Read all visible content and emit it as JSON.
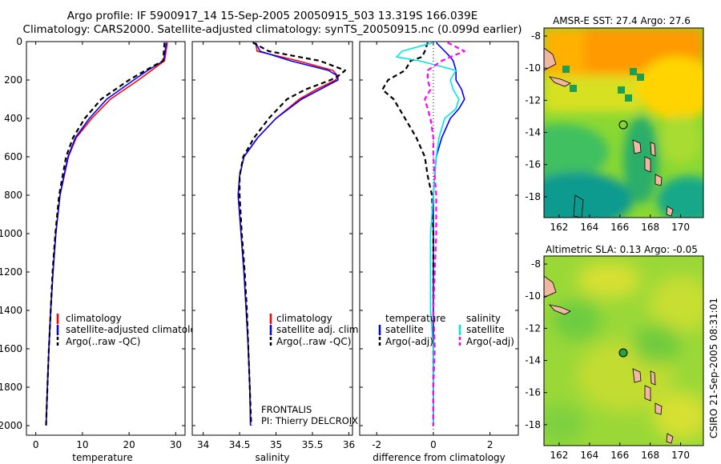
{
  "header": {
    "title_line1": "Argo profile: IF 5900917_14 15-Sep-2005 20050915_503 13.319S 166.039E",
    "title_line2": "Climatology: CARS2000. Satellite-adjusted climatology: synTS_20050915.nc (0.099d earlier)"
  },
  "credit": "CSIRO 21-Sep-2005 08:31:01",
  "pi_block": {
    "line1": "FRONTALIS",
    "line2": "PI: Thierry DELCROIX"
  },
  "colors": {
    "climatology": "#ff0000",
    "satellite": "#0000ff",
    "argo": "#000000",
    "sal_satellite": "#00e5e5",
    "sal_argo": "#ff00ff"
  },
  "chart_data": [
    {
      "id": "temperature",
      "type": "line",
      "xlabel": "temperature",
      "xticks": [
        0,
        10,
        20,
        30
      ],
      "xlim": [
        -2,
        32
      ],
      "yticks": [
        0,
        200,
        400,
        600,
        800,
        1000,
        1200,
        1400,
        1600,
        1800,
        2000
      ],
      "ylim": [
        0,
        2050
      ],
      "y_reversed": true,
      "depth": [
        5,
        100,
        150,
        200,
        300,
        400,
        500,
        600,
        800,
        1000,
        1200,
        1400,
        1600,
        1800,
        2000
      ],
      "series": [
        {
          "name": "climatology",
          "color": "#ff0000",
          "style": "solid",
          "values": [
            28.2,
            27.6,
            24.8,
            22.0,
            16.0,
            12.0,
            8.7,
            7.0,
            5.2,
            4.3,
            3.7,
            3.2,
            2.8,
            2.5,
            2.2
          ]
        },
        {
          "name": "satellite-adjusted climatology",
          "color": "#0000ff",
          "style": "solid",
          "values": [
            28.0,
            27.4,
            24.0,
            21.0,
            15.2,
            11.5,
            8.5,
            6.9,
            5.2,
            4.3,
            3.7,
            3.2,
            2.8,
            2.5,
            2.2
          ]
        },
        {
          "name": "Argo(..raw -QC)",
          "color": "#000000",
          "style": "dashed",
          "values": [
            27.6,
            27.3,
            23.5,
            20.0,
            14.0,
            10.5,
            8.0,
            6.5,
            5.0,
            4.2,
            3.6,
            3.2,
            2.8,
            2.5,
            2.2
          ]
        }
      ]
    },
    {
      "id": "salinity",
      "type": "line",
      "xlabel": "salinity",
      "xticks": [
        34,
        34.5,
        35,
        35.5,
        36
      ],
      "xlim": [
        33.85,
        36.05
      ],
      "y_reversed": true,
      "depth": [
        5,
        50,
        100,
        150,
        180,
        200,
        250,
        300,
        400,
        500,
        600,
        700,
        800,
        1000,
        1200,
        1400,
        1600,
        1800,
        2000
      ],
      "series": [
        {
          "name": "climatology",
          "color": "#ff0000",
          "style": "solid",
          "values": [
            34.72,
            34.74,
            35.3,
            35.78,
            35.85,
            35.82,
            35.55,
            35.32,
            35.0,
            34.75,
            34.56,
            34.5,
            34.48,
            34.52,
            34.56,
            34.59,
            34.62,
            34.64,
            34.65
          ]
        },
        {
          "name": "satellite adj. clim.",
          "color": "#0000ff",
          "style": "solid",
          "values": [
            34.72,
            34.78,
            35.2,
            35.72,
            35.85,
            35.85,
            35.6,
            35.35,
            35.0,
            34.75,
            34.56,
            34.5,
            34.48,
            34.52,
            34.56,
            34.59,
            34.62,
            34.64,
            34.65
          ]
        },
        {
          "name": "Argo(..raw -QC)",
          "color": "#000000",
          "style": "dashed",
          "values": [
            34.68,
            34.9,
            35.6,
            35.95,
            35.85,
            35.75,
            35.4,
            35.15,
            34.9,
            34.7,
            34.55,
            34.5,
            34.5,
            34.53,
            34.57,
            34.6,
            34.62,
            34.64,
            34.66
          ]
        }
      ],
      "annotation": [
        "FRONTALIS",
        "PI: Thierry DELCROIX"
      ]
    },
    {
      "id": "difference",
      "type": "line",
      "xlabel": "difference from climatology",
      "xticks": [
        -2,
        0,
        2
      ],
      "xlim": [
        -2.6,
        3.0
      ],
      "y_reversed": true,
      "zero_line": true,
      "depth": [
        5,
        50,
        80,
        100,
        150,
        200,
        250,
        300,
        350,
        400,
        500,
        600,
        700,
        800,
        1000,
        1200,
        1400,
        1600,
        1800,
        2000
      ],
      "series": [
        {
          "name": "temperature satellite",
          "color": "#0000ff",
          "style": "solid",
          "values": [
            0.1,
            0.4,
            0.6,
            0.7,
            0.8,
            0.8,
            1.0,
            1.1,
            0.9,
            0.6,
            0.3,
            0.1,
            0.05,
            0.0,
            0.0,
            0.0,
            0.0,
            0.0,
            0.0,
            0.0
          ]
        },
        {
          "name": "temperature Argo(-adj)",
          "color": "#000000",
          "style": "dashed",
          "values": [
            -0.2,
            -0.3,
            -0.4,
            -0.8,
            -1.0,
            -1.6,
            -1.8,
            -1.4,
            -1.2,
            -1.0,
            -0.6,
            -0.3,
            -0.2,
            -0.05,
            0.0,
            0.0,
            0.0,
            0.0,
            0.0,
            0.0
          ]
        },
        {
          "name": "salinity satellite",
          "color": "#00e5e5",
          "style": "solid",
          "values": [
            0.0,
            -1.1,
            -1.3,
            -0.5,
            0.8,
            0.6,
            0.7,
            0.9,
            0.8,
            0.4,
            0.2,
            0.1,
            0.05,
            0.0,
            -0.1,
            -0.1,
            -0.1,
            0.0,
            0.0,
            0.0
          ]
        },
        {
          "name": "salinity Argo(-adj)",
          "color": "#ff00ff",
          "style": "dashed",
          "values": [
            0.5,
            1.1,
            0.6,
            0.3,
            -0.2,
            -0.2,
            -0.1,
            -0.3,
            -0.2,
            -0.1,
            0.0,
            0.0,
            0.05,
            0.1,
            0.1,
            0.05,
            0.0,
            0.05,
            0.0,
            0.0
          ]
        }
      ]
    },
    {
      "id": "sst_map",
      "type": "heatmap",
      "title": "AMSR-E SST: 27.4 Argo: 27.6",
      "xticks": [
        162,
        164,
        166,
        168,
        170
      ],
      "yticks": [
        -8,
        -10,
        -12,
        -14,
        -16,
        -18
      ],
      "xlim": [
        161,
        171.5
      ],
      "ylim": [
        -19.3,
        -7.5
      ],
      "float_position": {
        "lon": 166.039,
        "lat": -13.319
      }
    },
    {
      "id": "sla_map",
      "type": "heatmap",
      "title": "Altimetric SLA: 0.13 Argo: -0.05",
      "xticks": [
        162,
        164,
        166,
        168,
        170
      ],
      "yticks": [
        -8,
        -10,
        -12,
        -14,
        -16,
        -18
      ],
      "xlim": [
        161,
        171.5
      ],
      "ylim": [
        -19.3,
        -7.5
      ],
      "float_position": {
        "lon": 166.039,
        "lat": -13.319
      }
    }
  ],
  "legends": {
    "temperature": [
      "climatology",
      "satellite-adjusted climatology",
      "Argo(..raw -QC)"
    ],
    "salinity": [
      "climatology",
      "satellite adj. clim.",
      "Argo(..raw -QC)"
    ],
    "difference": {
      "left_header": "temperature",
      "left": [
        "satellite",
        "Argo(-adj)"
      ],
      "right_header": "salinity",
      "right": [
        "satellite",
        "Argo(-adj)"
      ]
    }
  }
}
